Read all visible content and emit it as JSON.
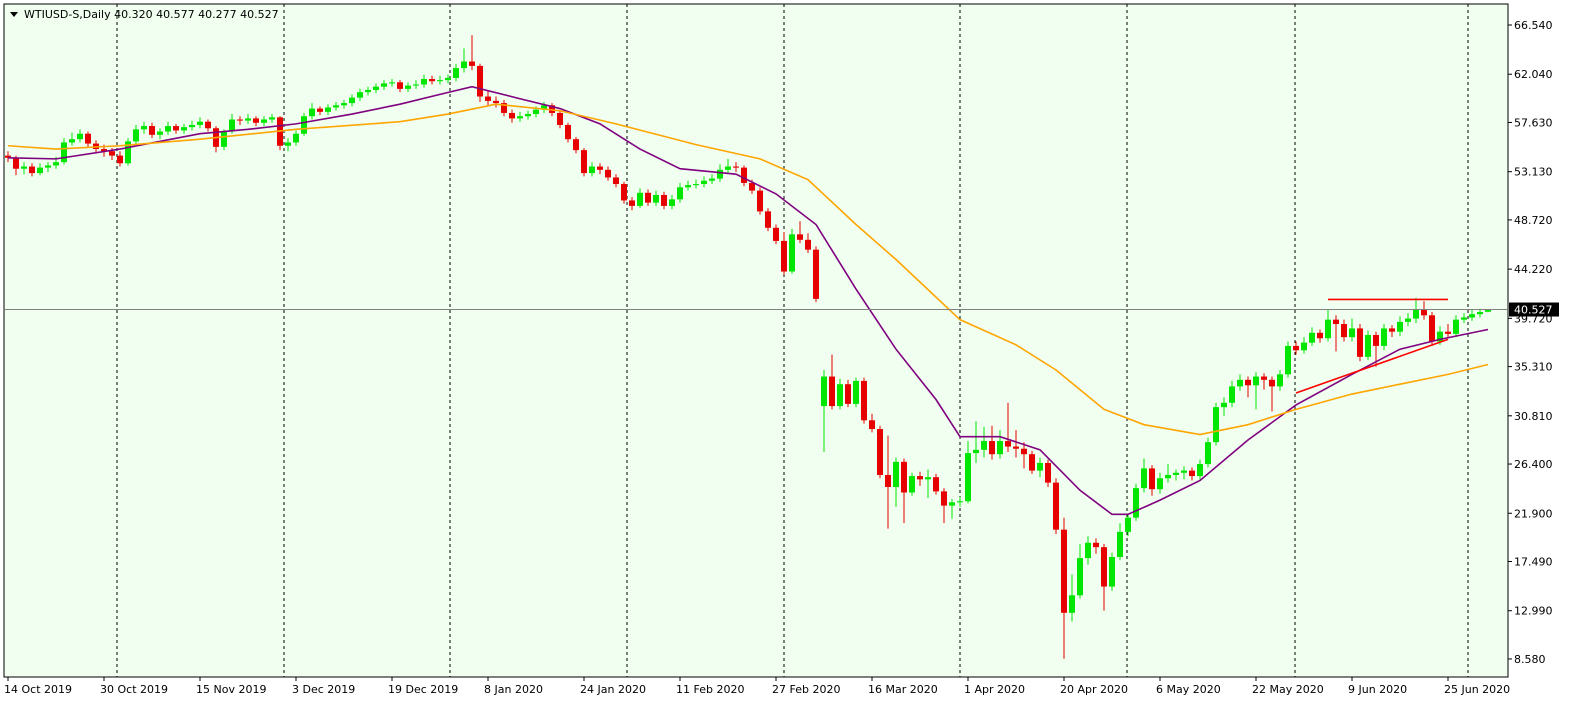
{
  "chart_data": {
    "type": "candlestick",
    "title": "WTIUSD-S,Daily  40.320 40.577 40.277 40.527",
    "background": "#f0fff0",
    "up_color": "#00e600",
    "down_color": "#e60000",
    "ylim": [
      6.93,
      68.46
    ],
    "yticks": [
      {
        "value": 66.54,
        "label": "66.540"
      },
      {
        "value": 62.04,
        "label": "62.040"
      },
      {
        "value": 57.63,
        "label": "57.630"
      },
      {
        "value": 53.13,
        "label": "53.130"
      },
      {
        "value": 48.72,
        "label": "48.720"
      },
      {
        "value": 44.22,
        "label": "44.220"
      },
      {
        "value": 39.72,
        "label": "39.720"
      },
      {
        "value": 35.31,
        "label": "35.310"
      },
      {
        "value": 30.81,
        "label": "30.810"
      },
      {
        "value": 26.4,
        "label": "26.400"
      },
      {
        "value": 21.9,
        "label": "21.900"
      },
      {
        "value": 17.49,
        "label": "17.490"
      },
      {
        "value": 12.99,
        "label": "12.990"
      },
      {
        "value": 8.58,
        "label": "8.580"
      }
    ],
    "last_price": {
      "value": 40.527,
      "label": "40.527"
    },
    "categories": [
      "14 Oct 2019",
      null,
      null,
      null,
      null,
      null,
      null,
      null,
      null,
      null,
      null,
      null,
      "30 Oct 2019",
      null,
      null,
      null,
      null,
      null,
      null,
      null,
      null,
      null,
      null,
      null,
      "15 Nov 2019",
      null,
      null,
      null,
      null,
      null,
      null,
      null,
      null,
      null,
      null,
      null,
      "3 Dec 2019",
      null,
      null,
      null,
      null,
      null,
      null,
      null,
      null,
      null,
      null,
      null,
      "19 Dec 2019",
      null,
      null,
      null,
      null,
      null,
      null,
      null,
      null,
      null,
      null,
      null,
      "8 Jan 2020",
      null,
      null,
      null,
      null,
      null,
      null,
      null,
      null,
      null,
      null,
      null,
      "24 Jan 2020",
      null,
      null,
      null,
      null,
      null,
      null,
      null,
      null,
      null,
      null,
      null,
      "11 Feb 2020",
      null,
      null,
      null,
      null,
      null,
      null,
      null,
      null,
      null,
      null,
      null,
      "27 Feb 2020",
      null,
      null,
      null,
      null,
      null,
      null,
      null,
      null,
      null,
      null,
      null,
      "16 Mar 2020",
      null,
      null,
      null,
      null,
      null,
      null,
      null,
      null,
      null,
      null,
      null,
      "1 Apr 2020",
      null,
      null,
      null,
      null,
      null,
      null,
      null,
      null,
      null,
      null,
      null,
      "20 Apr 2020",
      null,
      null,
      null,
      null,
      null,
      null,
      null,
      null,
      null,
      null,
      null,
      "6 May 2020",
      null,
      null,
      null,
      null,
      null,
      null,
      null,
      null,
      null,
      null,
      null,
      "22 May 2020",
      null,
      null,
      null,
      null,
      null,
      null,
      null,
      null,
      null,
      null,
      null,
      "9 Jun 2020",
      null,
      null,
      null,
      null,
      null,
      null,
      null,
      null,
      null,
      null,
      null,
      "25 Jun 2020",
      null,
      null,
      null,
      null,
      null
    ],
    "ohlc": [
      [
        54.6,
        55.0,
        54.0,
        54.4
      ],
      [
        54.4,
        54.6,
        52.8,
        53.4
      ],
      [
        53.4,
        54.0,
        52.9,
        53.6
      ],
      [
        53.6,
        53.9,
        52.7,
        53.0
      ],
      [
        53.0,
        53.9,
        52.8,
        53.5
      ],
      [
        53.5,
        54.0,
        53.1,
        53.7
      ],
      [
        53.7,
        54.5,
        53.4,
        54.0
      ],
      [
        54.0,
        56.2,
        53.8,
        55.8
      ],
      [
        55.8,
        56.7,
        55.5,
        56.1
      ],
      [
        56.1,
        57.0,
        55.8,
        56.6
      ],
      [
        56.6,
        56.8,
        55.4,
        55.7
      ],
      [
        55.7,
        56.0,
        54.9,
        55.2
      ],
      [
        55.2,
        55.6,
        54.5,
        55.0
      ],
      [
        55.0,
        55.3,
        54.2,
        54.6
      ],
      [
        54.6,
        55.0,
        53.6,
        53.9
      ],
      [
        53.9,
        56.2,
        53.7,
        55.9
      ],
      [
        55.9,
        57.4,
        55.6,
        57.0
      ],
      [
        57.0,
        57.7,
        56.6,
        57.3
      ],
      [
        57.3,
        57.6,
        56.2,
        56.5
      ],
      [
        56.5,
        57.1,
        56.1,
        56.8
      ],
      [
        56.8,
        57.7,
        56.5,
        57.3
      ],
      [
        57.3,
        57.5,
        56.6,
        56.9
      ],
      [
        56.9,
        57.5,
        56.6,
        57.2
      ],
      [
        57.2,
        57.8,
        56.9,
        57.4
      ],
      [
        57.4,
        58.1,
        57.1,
        57.7
      ],
      [
        57.7,
        57.9,
        56.8,
        57.1
      ],
      [
        57.1,
        57.3,
        54.9,
        55.4
      ],
      [
        55.4,
        57.0,
        55.1,
        56.8
      ],
      [
        56.8,
        58.4,
        56.6,
        57.9
      ],
      [
        57.9,
        58.2,
        57.4,
        57.8
      ],
      [
        57.8,
        58.4,
        57.5,
        58.0
      ],
      [
        58.0,
        58.2,
        57.3,
        57.6
      ],
      [
        57.6,
        58.2,
        57.3,
        57.9
      ],
      [
        57.9,
        58.4,
        57.6,
        58.1
      ],
      [
        58.1,
        58.2,
        55.1,
        55.5
      ],
      [
        55.5,
        56.2,
        55.0,
        55.8
      ],
      [
        55.8,
        56.9,
        55.5,
        56.6
      ],
      [
        56.6,
        58.5,
        56.4,
        58.2
      ],
      [
        58.2,
        59.4,
        57.9,
        58.9
      ],
      [
        58.9,
        59.1,
        58.3,
        58.6
      ],
      [
        58.6,
        59.3,
        58.3,
        59.0
      ],
      [
        59.0,
        59.5,
        58.7,
        59.2
      ],
      [
        59.2,
        59.7,
        58.9,
        59.4
      ],
      [
        59.4,
        60.2,
        59.1,
        59.9
      ],
      [
        59.9,
        60.7,
        59.6,
        60.4
      ],
      [
        60.4,
        60.9,
        60.1,
        60.6
      ],
      [
        60.6,
        61.2,
        60.3,
        60.9
      ],
      [
        60.9,
        61.5,
        60.6,
        61.2
      ],
      [
        61.2,
        61.6,
        60.9,
        61.3
      ],
      [
        61.3,
        61.5,
        60.4,
        60.7
      ],
      [
        60.7,
        61.3,
        60.4,
        61.0
      ],
      [
        61.0,
        61.5,
        60.7,
        61.1
      ],
      [
        61.1,
        62.0,
        60.8,
        61.6
      ],
      [
        61.6,
        61.9,
        61.1,
        61.4
      ],
      [
        61.4,
        61.9,
        61.1,
        61.5
      ],
      [
        61.5,
        62.0,
        61.2,
        61.7
      ],
      [
        61.7,
        63.0,
        61.4,
        62.6
      ],
      [
        62.6,
        64.4,
        62.2,
        63.2
      ],
      [
        63.2,
        65.6,
        62.4,
        62.8
      ],
      [
        62.8,
        63.0,
        59.5,
        60.0
      ],
      [
        60.0,
        60.5,
        59.2,
        59.6
      ],
      [
        59.6,
        60.0,
        59.0,
        59.4
      ],
      [
        59.4,
        59.7,
        58.2,
        58.5
      ],
      [
        58.5,
        58.8,
        57.6,
        58.0
      ],
      [
        58.0,
        58.6,
        57.7,
        58.2
      ],
      [
        58.2,
        58.7,
        57.9,
        58.4
      ],
      [
        58.4,
        59.1,
        58.1,
        58.8
      ],
      [
        58.8,
        59.5,
        58.5,
        59.2
      ],
      [
        59.2,
        59.4,
        58.2,
        58.5
      ],
      [
        58.5,
        58.7,
        57.1,
        57.4
      ],
      [
        57.4,
        57.6,
        55.8,
        56.1
      ],
      [
        56.1,
        56.3,
        54.8,
        55.1
      ],
      [
        55.1,
        55.3,
        52.7,
        53.0
      ],
      [
        53.0,
        54.0,
        52.7,
        53.6
      ],
      [
        53.6,
        53.9,
        52.9,
        53.3
      ],
      [
        53.3,
        53.6,
        52.3,
        52.6
      ],
      [
        52.6,
        52.9,
        51.7,
        52.0
      ],
      [
        52.0,
        52.2,
        50.2,
        50.5
      ],
      [
        50.5,
        50.8,
        49.6,
        50.0
      ],
      [
        50.0,
        51.6,
        49.8,
        51.2
      ],
      [
        51.2,
        51.5,
        50.0,
        50.3
      ],
      [
        50.3,
        51.4,
        50.0,
        51.0
      ],
      [
        51.0,
        51.3,
        49.7,
        50.0
      ],
      [
        50.0,
        51.0,
        49.7,
        50.6
      ],
      [
        50.6,
        52.1,
        50.3,
        51.7
      ],
      [
        51.7,
        52.3,
        51.4,
        51.9
      ],
      [
        51.9,
        52.4,
        51.6,
        52.0
      ],
      [
        52.0,
        52.7,
        51.7,
        52.3
      ],
      [
        52.3,
        52.9,
        52.0,
        52.5
      ],
      [
        52.5,
        53.8,
        52.2,
        53.3
      ],
      [
        53.3,
        54.3,
        53.0,
        53.6
      ],
      [
        53.6,
        54.0,
        53.1,
        53.5
      ],
      [
        53.5,
        53.7,
        51.8,
        52.1
      ],
      [
        52.1,
        52.4,
        51.1,
        51.4
      ],
      [
        51.4,
        51.7,
        49.2,
        49.5
      ],
      [
        49.5,
        49.8,
        47.7,
        48.0
      ],
      [
        48.0,
        48.3,
        46.5,
        46.8
      ],
      [
        46.8,
        47.6,
        43.7,
        44.0
      ],
      [
        44.0,
        47.9,
        43.8,
        47.4
      ],
      [
        47.4,
        48.6,
        46.6,
        46.9
      ],
      [
        46.9,
        47.5,
        45.7,
        46.0
      ],
      [
        46.0,
        46.3,
        41.2,
        41.5
      ],
      [
        31.7,
        35.0,
        27.5,
        34.4
      ],
      [
        34.4,
        36.4,
        31.4,
        31.7
      ],
      [
        31.7,
        34.2,
        31.4,
        33.7
      ],
      [
        33.7,
        34.1,
        31.6,
        31.9
      ],
      [
        31.9,
        34.3,
        31.6,
        34.0
      ],
      [
        34.0,
        34.3,
        30.1,
        30.4
      ],
      [
        30.4,
        31.0,
        29.3,
        29.6
      ],
      [
        29.6,
        29.9,
        25.1,
        25.4
      ],
      [
        25.4,
        29.0,
        20.5,
        24.3
      ],
      [
        24.3,
        27.0,
        22.5,
        26.6
      ],
      [
        26.6,
        26.9,
        21.0,
        23.8
      ],
      [
        23.8,
        25.6,
        23.5,
        25.3
      ],
      [
        25.3,
        25.7,
        24.4,
        25.0
      ],
      [
        25.0,
        25.9,
        23.3,
        25.2
      ],
      [
        25.2,
        25.5,
        23.6,
        23.9
      ],
      [
        23.9,
        24.2,
        21.0,
        22.6
      ],
      [
        22.6,
        23.2,
        21.4,
        22.9
      ],
      [
        22.9,
        23.4,
        22.5,
        23.0
      ],
      [
        23.0,
        28.5,
        22.8,
        27.4
      ],
      [
        27.4,
        30.3,
        26.5,
        27.7
      ],
      [
        27.7,
        29.8,
        27.0,
        28.5
      ],
      [
        28.5,
        29.9,
        26.8,
        27.3
      ],
      [
        27.3,
        29.5,
        26.9,
        28.5
      ],
      [
        28.5,
        32.0,
        27.5,
        28.0
      ],
      [
        28.0,
        29.5,
        27.0,
        27.8
      ],
      [
        27.8,
        28.4,
        26.0,
        27.3
      ],
      [
        27.3,
        27.6,
        25.5,
        25.8
      ],
      [
        25.8,
        27.0,
        25.2,
        26.5
      ],
      [
        26.5,
        26.8,
        24.3,
        24.7
      ],
      [
        24.7,
        25.1,
        20.0,
        20.4
      ],
      [
        20.4,
        21.5,
        8.6,
        12.8
      ],
      [
        12.8,
        16.3,
        12.0,
        14.4
      ],
      [
        14.4,
        19.1,
        14.1,
        17.8
      ],
      [
        17.8,
        19.8,
        17.2,
        19.2
      ],
      [
        19.2,
        19.6,
        18.2,
        18.8
      ],
      [
        18.8,
        19.1,
        13.0,
        15.2
      ],
      [
        15.2,
        18.3,
        14.8,
        17.9
      ],
      [
        17.9,
        21.0,
        17.6,
        20.2
      ],
      [
        20.2,
        21.9,
        19.8,
        21.5
      ],
      [
        21.5,
        24.6,
        21.2,
        24.2
      ],
      [
        24.2,
        26.9,
        23.8,
        26.0
      ],
      [
        26.0,
        26.3,
        23.5,
        24.1
      ],
      [
        24.1,
        25.6,
        23.7,
        25.1
      ],
      [
        25.1,
        26.4,
        24.7,
        25.4
      ],
      [
        25.4,
        25.9,
        24.9,
        25.6
      ],
      [
        25.6,
        26.2,
        25.0,
        25.8
      ],
      [
        25.8,
        26.1,
        24.9,
        25.3
      ],
      [
        25.3,
        26.8,
        25.0,
        26.4
      ],
      [
        26.4,
        28.8,
        26.1,
        28.4
      ],
      [
        28.4,
        32.0,
        28.1,
        31.6
      ],
      [
        31.6,
        32.5,
        30.8,
        32.0
      ],
      [
        32.0,
        34.0,
        31.6,
        33.5
      ],
      [
        33.5,
        34.6,
        33.1,
        34.1
      ],
      [
        34.1,
        34.4,
        32.5,
        33.6
      ],
      [
        33.6,
        34.8,
        31.4,
        34.4
      ],
      [
        34.4,
        34.7,
        33.2,
        34.1
      ],
      [
        34.1,
        34.4,
        31.2,
        33.5
      ],
      [
        33.5,
        35.0,
        33.1,
        34.6
      ],
      [
        34.6,
        37.6,
        34.3,
        37.2
      ],
      [
        37.2,
        37.6,
        36.4,
        36.8
      ],
      [
        36.8,
        38.0,
        36.5,
        37.5
      ],
      [
        37.5,
        38.9,
        37.2,
        38.4
      ],
      [
        38.4,
        38.7,
        37.5,
        37.9
      ],
      [
        37.9,
        40.5,
        37.6,
        39.6
      ],
      [
        39.6,
        40.0,
        36.7,
        39.2
      ],
      [
        39.2,
        39.6,
        37.6,
        38.0
      ],
      [
        38.0,
        39.7,
        37.6,
        38.8
      ],
      [
        38.8,
        39.2,
        35.8,
        36.2
      ],
      [
        36.2,
        38.6,
        35.9,
        38.2
      ],
      [
        38.2,
        38.5,
        35.3,
        37.2
      ],
      [
        37.2,
        39.2,
        36.8,
        38.8
      ],
      [
        38.8,
        39.1,
        38.0,
        38.5
      ],
      [
        38.5,
        39.9,
        38.1,
        39.4
      ],
      [
        39.4,
        40.2,
        39.0,
        39.7
      ],
      [
        39.7,
        41.6,
        39.3,
        40.5
      ],
      [
        40.5,
        41.3,
        39.6,
        40.0
      ],
      [
        40.0,
        40.3,
        37.2,
        37.6
      ],
      [
        37.6,
        39.0,
        37.3,
        38.5
      ],
      [
        38.5,
        39.2,
        37.9,
        38.3
      ],
      [
        38.3,
        40.0,
        38.0,
        39.6
      ],
      [
        39.6,
        40.2,
        39.3,
        39.8
      ],
      [
        39.8,
        40.5,
        39.5,
        40.1
      ],
      [
        40.1,
        40.6,
        39.8,
        40.3
      ],
      [
        40.32,
        40.577,
        40.277,
        40.527
      ]
    ],
    "lines": [
      {
        "color": "#800080",
        "x": [
          0,
          6,
          14,
          24,
          30,
          36,
          43,
          49,
          54,
          58,
          64,
          69,
          74,
          79,
          84,
          91,
          96,
          101,
          106,
          111,
          116,
          119,
          124,
          129,
          134,
          138,
          140,
          144,
          149,
          155,
          161,
          168,
          174,
          179,
          185
        ],
        "values": [
          54.4,
          54.3,
          55.2,
          56.6,
          57.0,
          57.5,
          58.4,
          59.3,
          60.2,
          60.9,
          59.8,
          58.9,
          57.5,
          55.2,
          53.4,
          52.9,
          51.1,
          48.3,
          42.4,
          36.9,
          32.3,
          28.9,
          28.9,
          27.7,
          24.0,
          21.8,
          21.8,
          23.1,
          24.9,
          28.6,
          31.8,
          34.6,
          36.9,
          37.8,
          38.7
        ]
      },
      {
        "color": "#ffa500",
        "x": [
          0,
          6,
          14,
          24,
          36,
          49,
          55,
          61,
          69,
          76,
          86,
          94,
          100,
          106,
          111,
          119,
          126,
          131,
          137,
          142,
          149,
          155,
          161,
          168,
          174,
          180,
          185
        ],
        "values": [
          55.5,
          55.2,
          55.5,
          56.1,
          57.0,
          57.7,
          58.4,
          59.3,
          58.7,
          57.5,
          55.6,
          54.3,
          52.4,
          48.3,
          45.1,
          39.6,
          37.3,
          35.0,
          31.4,
          30.0,
          29.1,
          30.0,
          31.4,
          32.8,
          33.7,
          34.6,
          35.5
        ]
      },
      {
        "color": "#ff0000",
        "x": [
          165,
          180
        ],
        "values": [
          41.45,
          41.45
        ]
      },
      {
        "color": "#ff0000",
        "x": [
          161,
          180
        ],
        "values": [
          32.9,
          37.8
        ]
      }
    ]
  }
}
